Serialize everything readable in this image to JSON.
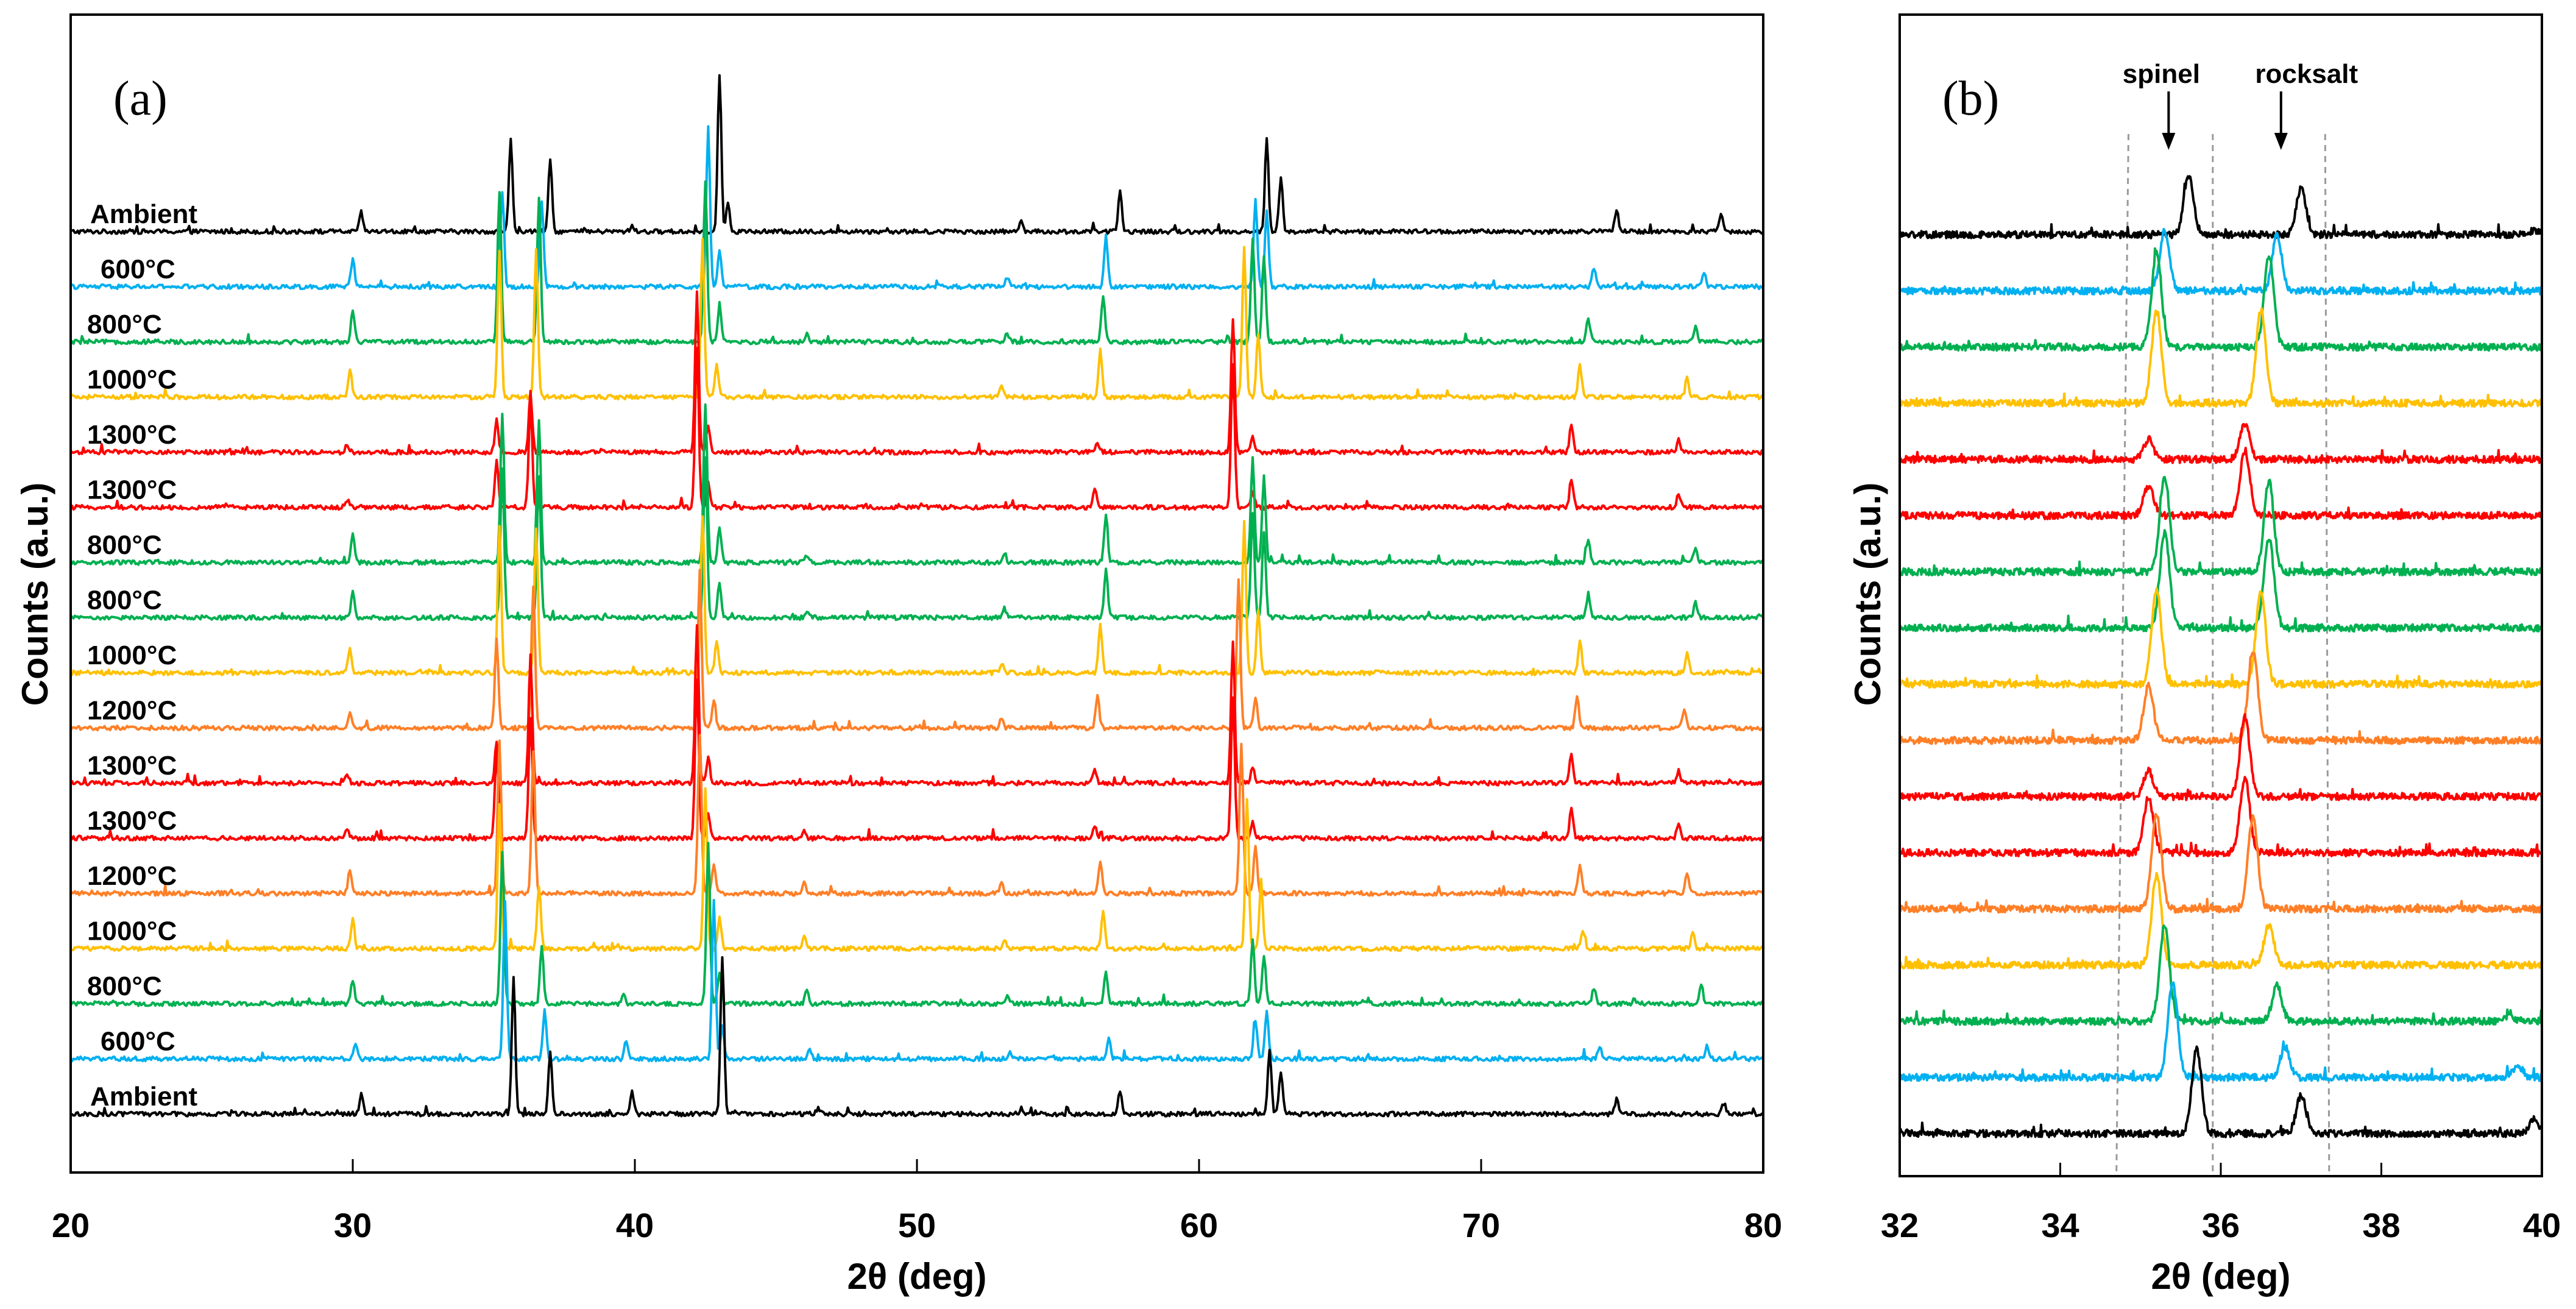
{
  "colors": {
    "black": "#000000",
    "blue": "#00b0f0",
    "green": "#00b050",
    "yellow": "#ffc000",
    "red": "#ff0000",
    "orange": "#ff7f27",
    "guide": "#9a9a9a"
  },
  "chart_data": [
    {
      "id": "a",
      "type": "line",
      "panel_label": "(a)",
      "xlabel": "2θ (deg)",
      "ylabel": "Counts (a.u.)",
      "xlim": [
        20,
        80
      ],
      "xticks": [
        "20",
        "30",
        "40",
        "50",
        "60",
        "70",
        "80"
      ],
      "y_ticks_shown": false,
      "description": "Stacked XRD patterns, offset vertically, top to bottom",
      "series": [
        {
          "name": "Ambient",
          "color": "black",
          "phase": "ambient",
          "peaks": [
            [
              30.3,
              0.12
            ],
            [
              35.6,
              0.58
            ],
            [
              37.0,
              0.45
            ],
            [
              39.9,
              0.04
            ],
            [
              43.0,
              1.0
            ],
            [
              43.3,
              0.18
            ],
            [
              53.7,
              0.08
            ],
            [
              57.2,
              0.25
            ],
            [
              62.4,
              0.58
            ],
            [
              62.9,
              0.34
            ],
            [
              74.8,
              0.14
            ],
            [
              78.5,
              0.12
            ]
          ]
        },
        {
          "name": "600°C",
          "color": "blue",
          "phase": "mixed",
          "peaks": [
            [
              30.0,
              0.18
            ],
            [
              35.3,
              0.6
            ],
            [
              36.7,
              0.55
            ],
            [
              42.6,
              1.0
            ],
            [
              43.0,
              0.22
            ],
            [
              53.2,
              0.06
            ],
            [
              56.7,
              0.32
            ],
            [
              62.0,
              0.55
            ],
            [
              62.4,
              0.48
            ],
            [
              74.0,
              0.12
            ],
            [
              77.9,
              0.09
            ]
          ]
        },
        {
          "name": "800°C",
          "color": "green",
          "phase": "mixed",
          "peaks": [
            [
              30.0,
              0.2
            ],
            [
              35.2,
              0.95
            ],
            [
              36.6,
              0.9
            ],
            [
              42.5,
              1.0
            ],
            [
              43.0,
              0.22
            ],
            [
              46.1,
              0.05
            ],
            [
              53.2,
              0.05
            ],
            [
              56.6,
              0.3
            ],
            [
              61.9,
              0.65
            ],
            [
              62.3,
              0.55
            ],
            [
              73.8,
              0.15
            ],
            [
              77.6,
              0.09
            ]
          ]
        },
        {
          "name": "1000°C",
          "color": "yellow",
          "phase": "mixed",
          "peaks": [
            [
              29.9,
              0.17
            ],
            [
              35.2,
              0.92
            ],
            [
              36.5,
              0.92
            ],
            [
              42.4,
              1.0
            ],
            [
              42.9,
              0.2
            ],
            [
              53.0,
              0.06
            ],
            [
              56.5,
              0.3
            ],
            [
              61.6,
              0.95
            ],
            [
              62.1,
              0.4
            ],
            [
              73.5,
              0.2
            ],
            [
              77.3,
              0.12
            ]
          ]
        },
        {
          "name": "1300°C",
          "color": "red",
          "phase": "rocksalt",
          "peaks": [
            [
              29.8,
              0.05
            ],
            [
              35.1,
              0.2
            ],
            [
              36.3,
              0.35
            ],
            [
              42.2,
              1.0
            ],
            [
              42.6,
              0.16
            ],
            [
              56.4,
              0.06
            ],
            [
              61.2,
              0.85
            ],
            [
              61.9,
              0.09
            ],
            [
              73.2,
              0.18
            ],
            [
              77.0,
              0.08
            ]
          ]
        },
        {
          "name": "1300°C",
          "color": "red",
          "phase": "rocksalt",
          "peaks": [
            [
              29.8,
              0.05
            ],
            [
              35.1,
              0.3
            ],
            [
              36.3,
              0.65
            ],
            [
              42.2,
              1.0
            ],
            [
              42.6,
              0.16
            ],
            [
              56.3,
              0.12
            ],
            [
              61.2,
              0.9
            ],
            [
              61.9,
              0.1
            ],
            [
              73.2,
              0.18
            ],
            [
              77.0,
              0.08
            ]
          ]
        },
        {
          "name": "800°C",
          "color": "green",
          "phase": "mixed",
          "peaks": [
            [
              30.0,
              0.17
            ],
            [
              35.3,
              0.95
            ],
            [
              36.6,
              0.9
            ],
            [
              42.5,
              1.0
            ],
            [
              43.0,
              0.22
            ],
            [
              46.1,
              0.05
            ],
            [
              53.1,
              0.06
            ],
            [
              56.7,
              0.3
            ],
            [
              61.9,
              0.65
            ],
            [
              62.3,
              0.55
            ],
            [
              73.8,
              0.15
            ],
            [
              77.6,
              0.1
            ]
          ]
        },
        {
          "name": "800°C",
          "color": "green",
          "phase": "mixed",
          "peaks": [
            [
              30.0,
              0.17
            ],
            [
              35.3,
              0.95
            ],
            [
              36.6,
              0.9
            ],
            [
              42.5,
              1.0
            ],
            [
              43.0,
              0.22
            ],
            [
              46.1,
              0.05
            ],
            [
              53.1,
              0.06
            ],
            [
              56.7,
              0.3
            ],
            [
              61.9,
              0.65
            ],
            [
              62.3,
              0.55
            ],
            [
              73.8,
              0.15
            ],
            [
              77.6,
              0.1
            ]
          ]
        },
        {
          "name": "1000°C",
          "color": "yellow",
          "phase": "mixed",
          "peaks": [
            [
              29.9,
              0.15
            ],
            [
              35.2,
              0.92
            ],
            [
              36.5,
              0.92
            ],
            [
              42.4,
              1.0
            ],
            [
              42.9,
              0.2
            ],
            [
              53.0,
              0.06
            ],
            [
              56.5,
              0.3
            ],
            [
              61.6,
              0.95
            ],
            [
              62.1,
              0.4
            ],
            [
              73.5,
              0.2
            ],
            [
              77.3,
              0.12
            ]
          ]
        },
        {
          "name": "1200°C",
          "color": "orange",
          "phase": "mixed",
          "peaks": [
            [
              29.9,
              0.1
            ],
            [
              35.1,
              0.55
            ],
            [
              36.4,
              0.9
            ],
            [
              42.3,
              1.0
            ],
            [
              42.8,
              0.18
            ],
            [
              53.0,
              0.06
            ],
            [
              56.4,
              0.2
            ],
            [
              61.4,
              0.95
            ],
            [
              62.0,
              0.2
            ],
            [
              73.4,
              0.2
            ],
            [
              77.2,
              0.12
            ]
          ]
        },
        {
          "name": "1300°C",
          "color": "red",
          "phase": "rocksalt",
          "peaks": [
            [
              29.8,
              0.05
            ],
            [
              35.1,
              0.25
            ],
            [
              36.3,
              0.8
            ],
            [
              42.2,
              1.0
            ],
            [
              42.6,
              0.16
            ],
            [
              56.3,
              0.08
            ],
            [
              61.2,
              0.9
            ],
            [
              61.9,
              0.1
            ],
            [
              73.2,
              0.18
            ],
            [
              77.0,
              0.08
            ]
          ]
        },
        {
          "name": "1300°C",
          "color": "red",
          "phase": "rocksalt",
          "peaks": [
            [
              29.8,
              0.05
            ],
            [
              35.1,
              0.55
            ],
            [
              36.3,
              0.75
            ],
            [
              42.2,
              1.0
            ],
            [
              42.6,
              0.16
            ],
            [
              46.0,
              0.05
            ],
            [
              56.3,
              0.08
            ],
            [
              61.2,
              0.9
            ],
            [
              61.9,
              0.1
            ],
            [
              73.2,
              0.18
            ],
            [
              77.0,
              0.1
            ]
          ]
        },
        {
          "name": "1200°C",
          "color": "orange",
          "phase": "mixed",
          "peaks": [
            [
              29.9,
              0.15
            ],
            [
              35.2,
              0.95
            ],
            [
              36.4,
              0.9
            ],
            [
              42.3,
              1.0
            ],
            [
              42.8,
              0.18
            ],
            [
              46.0,
              0.08
            ],
            [
              53.0,
              0.06
            ],
            [
              56.5,
              0.2
            ],
            [
              61.5,
              0.95
            ],
            [
              62.0,
              0.3
            ],
            [
              73.5,
              0.18
            ],
            [
              77.3,
              0.12
            ]
          ]
        },
        {
          "name": "1000°C",
          "color": "yellow",
          "phase": "mixed",
          "peaks": [
            [
              30.0,
              0.18
            ],
            [
              35.2,
              0.9
            ],
            [
              36.6,
              0.4
            ],
            [
              42.5,
              1.0
            ],
            [
              43.0,
              0.2
            ],
            [
              46.0,
              0.08
            ],
            [
              53.1,
              0.06
            ],
            [
              56.6,
              0.24
            ],
            [
              61.7,
              0.95
            ],
            [
              62.2,
              0.4
            ],
            [
              73.6,
              0.12
            ],
            [
              77.5,
              0.1
            ]
          ]
        },
        {
          "name": "800°C",
          "color": "green",
          "phase": "mixed",
          "peaks": [
            [
              30.0,
              0.15
            ],
            [
              35.3,
              0.95
            ],
            [
              36.7,
              0.35
            ],
            [
              39.6,
              0.05
            ],
            [
              42.6,
              1.0
            ],
            [
              43.0,
              0.2
            ],
            [
              46.1,
              0.08
            ],
            [
              53.2,
              0.05
            ],
            [
              56.7,
              0.2
            ],
            [
              61.9,
              0.4
            ],
            [
              62.3,
              0.3
            ],
            [
              74.0,
              0.1
            ],
            [
              77.8,
              0.12
            ]
          ]
        },
        {
          "name": "600°C",
          "color": "blue",
          "phase": "mixed",
          "peaks": [
            [
              30.1,
              0.1
            ],
            [
              35.4,
              0.95
            ],
            [
              36.8,
              0.3
            ],
            [
              39.7,
              0.12
            ],
            [
              42.8,
              1.0
            ],
            [
              43.1,
              0.2
            ],
            [
              46.2,
              0.06
            ],
            [
              53.3,
              0.04
            ],
            [
              56.8,
              0.14
            ],
            [
              62.0,
              0.25
            ],
            [
              62.4,
              0.3
            ],
            [
              74.2,
              0.08
            ],
            [
              78.0,
              0.08
            ]
          ]
        },
        {
          "name": "Ambient",
          "color": "black",
          "phase": "ambient",
          "peaks": [
            [
              30.3,
              0.12
            ],
            [
              35.7,
              0.85
            ],
            [
              37.0,
              0.38
            ],
            [
              39.9,
              0.14
            ],
            [
              43.1,
              1.0
            ],
            [
              46.5,
              0.04
            ],
            [
              53.7,
              0.04
            ],
            [
              57.2,
              0.14
            ],
            [
              62.5,
              0.4
            ],
            [
              62.9,
              0.26
            ],
            [
              74.8,
              0.09
            ],
            [
              78.6,
              0.07
            ]
          ]
        }
      ]
    },
    {
      "id": "b",
      "type": "line",
      "panel_label": "(b)",
      "xlabel": "2θ (deg)",
      "ylabel": "Counts (a.u.)",
      "xlim": [
        32,
        40
      ],
      "xticks": [
        "32",
        "34",
        "36",
        "38",
        "40"
      ],
      "y_ticks_shown": false,
      "description": "Zoom of the spinel and rocksalt reflections for the same stacked patterns",
      "annotations": [
        {
          "text": "spinel",
          "x": 35.35
        },
        {
          "text": "rocksalt",
          "x": 36.75
        }
      ],
      "guide_lines_x": [
        34.7,
        35.9,
        37.35
      ],
      "guide_lines_top_x": [
        34.85,
        35.9,
        37.3
      ]
    }
  ]
}
